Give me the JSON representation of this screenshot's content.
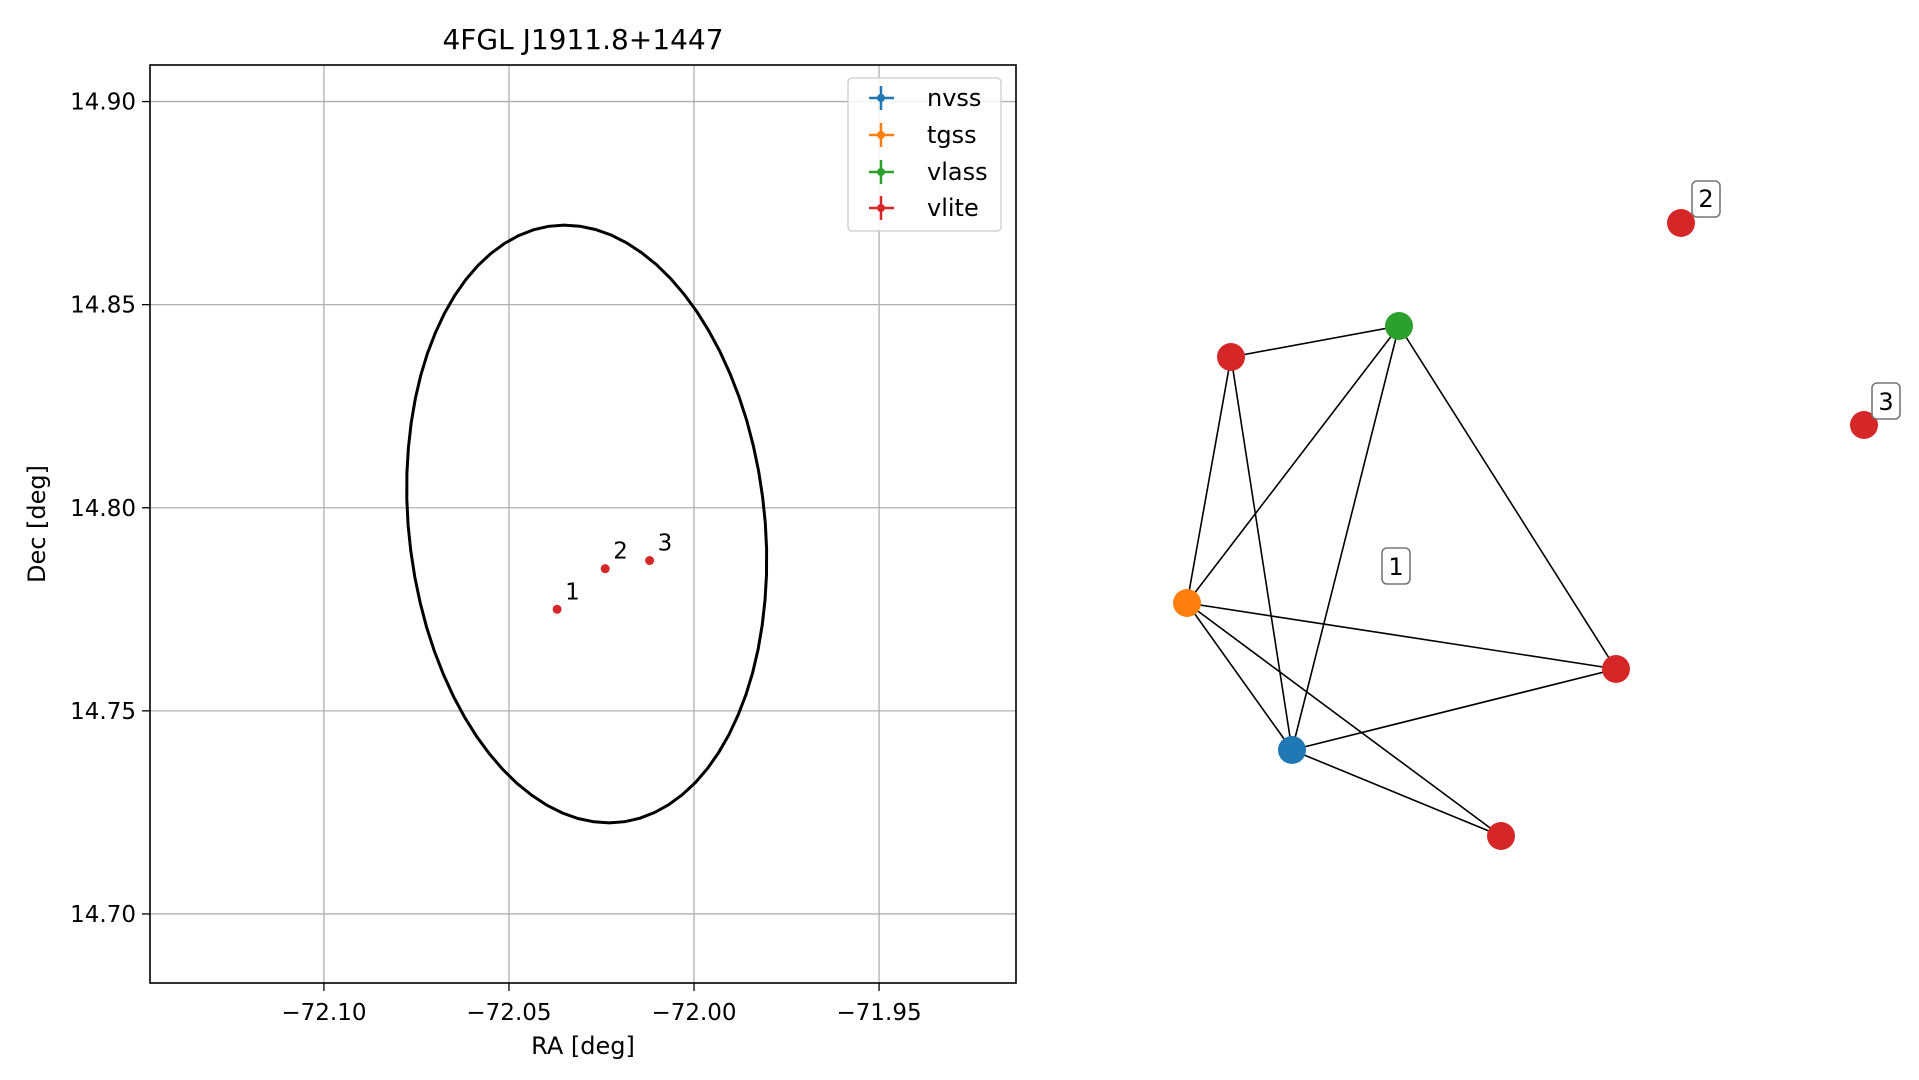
{
  "figure": {
    "panels": [
      "sky-plot",
      "association-graph"
    ]
  },
  "chart_data": [
    {
      "type": "scatter",
      "title": "4FGL J1911.8+1447",
      "xlabel": "RA [deg]",
      "ylabel": "Dec [deg]",
      "xlim": [
        -72.147,
        -71.913
      ],
      "ylim": [
        14.683,
        14.909
      ],
      "x_ticks": [
        -72.1,
        -72.05,
        -72.0,
        -71.95
      ],
      "x_tick_labels": [
        "−72.10",
        "−72.05",
        "−72.00",
        "−71.95"
      ],
      "y_ticks": [
        14.7,
        14.75,
        14.8,
        14.85,
        14.9
      ],
      "y_tick_labels": [
        "14.70",
        "14.75",
        "14.80",
        "14.85",
        "14.90"
      ],
      "grid": true,
      "legend": {
        "position": "top-right",
        "entries": [
          "nvss",
          "tgss",
          "vlass",
          "vlite"
        ]
      },
      "series_colors": {
        "nvss": "#1f77b4",
        "tgss": "#ff7f0e",
        "vlass": "#2ca02c",
        "vlite": "#d62728"
      },
      "error_ellipse": {
        "center_ra": -72.029,
        "center_dec": 14.796,
        "semi_major": 0.074,
        "semi_minor": 0.048,
        "angle_deg": 8,
        "color": "#000000"
      },
      "points": [
        {
          "label": "1",
          "series": "vlite",
          "ra": -72.037,
          "dec": 14.775
        },
        {
          "label": "2",
          "series": "vlite",
          "ra": -72.024,
          "dec": 14.785
        },
        {
          "label": "3",
          "series": "vlite",
          "ra": -72.012,
          "dec": 14.787
        }
      ]
    },
    {
      "type": "graph",
      "nodes": [
        {
          "id": "a",
          "series": "vlite"
        },
        {
          "id": "b",
          "series": "vlass"
        },
        {
          "id": "c",
          "series": "tgss"
        },
        {
          "id": "d",
          "series": "vlite"
        },
        {
          "id": "e",
          "series": "nvss"
        },
        {
          "id": "f",
          "series": "vlite"
        },
        {
          "id": "g",
          "series": "vlite"
        },
        {
          "id": "h",
          "series": "vlite"
        }
      ],
      "edges": [
        [
          "a",
          "b"
        ],
        [
          "a",
          "c"
        ],
        [
          "a",
          "e"
        ],
        [
          "b",
          "c"
        ],
        [
          "b",
          "e"
        ],
        [
          "b",
          "d"
        ],
        [
          "c",
          "d"
        ],
        [
          "c",
          "e"
        ],
        [
          "c",
          "f"
        ],
        [
          "e",
          "d"
        ],
        [
          "e",
          "f"
        ]
      ],
      "group_labels": [
        "1",
        "2",
        "3"
      ]
    }
  ]
}
